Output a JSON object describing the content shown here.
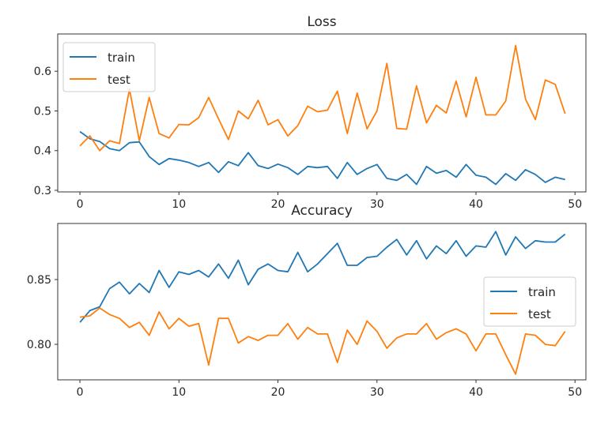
{
  "chart_data": [
    {
      "type": "line",
      "title": "Loss",
      "xlabel": "",
      "ylabel": "",
      "xlim": [
        -2.24,
        51.1
      ],
      "ylim": [
        0.296,
        0.694
      ],
      "xticks": [
        0,
        10,
        20,
        30,
        40,
        50
      ],
      "yticks": [
        0.3,
        0.4,
        0.5,
        0.6
      ],
      "ytick_labels": [
        "0.3",
        "0.4",
        "0.5",
        "0.6"
      ],
      "legend_position": "upper-left",
      "grid": false,
      "x": [
        0,
        1,
        2,
        3,
        4,
        5,
        6,
        7,
        8,
        9,
        10,
        11,
        12,
        13,
        14,
        15,
        16,
        17,
        18,
        19,
        20,
        21,
        22,
        23,
        24,
        25,
        26,
        27,
        28,
        29,
        30,
        31,
        32,
        33,
        34,
        35,
        36,
        37,
        38,
        39,
        40,
        41,
        42,
        43,
        44,
        45,
        46,
        47,
        48,
        49
      ],
      "series": [
        {
          "name": "train",
          "color": "#1f77b4",
          "values": [
            0.448,
            0.43,
            0.423,
            0.405,
            0.4,
            0.42,
            0.422,
            0.385,
            0.365,
            0.38,
            0.376,
            0.37,
            0.36,
            0.37,
            0.345,
            0.372,
            0.362,
            0.395,
            0.362,
            0.355,
            0.366,
            0.357,
            0.34,
            0.36,
            0.357,
            0.36,
            0.33,
            0.37,
            0.34,
            0.355,
            0.365,
            0.33,
            0.325,
            0.34,
            0.315,
            0.36,
            0.343,
            0.35,
            0.333,
            0.365,
            0.338,
            0.333,
            0.315,
            0.342,
            0.325,
            0.352,
            0.34,
            0.32,
            0.333,
            0.327
          ]
        },
        {
          "name": "test",
          "color": "#ff7f0e",
          "values": [
            0.412,
            0.437,
            0.4,
            0.425,
            0.418,
            0.555,
            0.425,
            0.534,
            0.443,
            0.432,
            0.466,
            0.465,
            0.483,
            0.534,
            0.48,
            0.428,
            0.5,
            0.48,
            0.527,
            0.465,
            0.478,
            0.437,
            0.463,
            0.512,
            0.498,
            0.502,
            0.55,
            0.443,
            0.545,
            0.455,
            0.5,
            0.62,
            0.456,
            0.454,
            0.563,
            0.47,
            0.514,
            0.495,
            0.575,
            0.485,
            0.585,
            0.49,
            0.49,
            0.525,
            0.665,
            0.53,
            0.478,
            0.578,
            0.567,
            0.493
          ]
        }
      ]
    },
    {
      "type": "line",
      "title": "Accuracy",
      "xlabel": "",
      "ylabel": "",
      "xlim": [
        -2.24,
        51.1
      ],
      "ylim": [
        0.7726,
        0.8933
      ],
      "xticks": [
        0,
        10,
        20,
        30,
        40,
        50
      ],
      "yticks": [
        0.8,
        0.85
      ],
      "ytick_labels": [
        "0.80",
        "0.85"
      ],
      "legend_position": "center-right",
      "grid": false,
      "x": [
        0,
        1,
        2,
        3,
        4,
        5,
        6,
        7,
        8,
        9,
        10,
        11,
        12,
        13,
        14,
        15,
        16,
        17,
        18,
        19,
        20,
        21,
        22,
        23,
        24,
        25,
        26,
        27,
        28,
        29,
        30,
        31,
        32,
        33,
        34,
        35,
        36,
        37,
        38,
        39,
        40,
        41,
        42,
        43,
        44,
        45,
        46,
        47,
        48,
        49
      ],
      "series": [
        {
          "name": "train",
          "color": "#1f77b4",
          "values": [
            0.817,
            0.826,
            0.829,
            0.843,
            0.848,
            0.839,
            0.847,
            0.84,
            0.857,
            0.844,
            0.856,
            0.854,
            0.857,
            0.852,
            0.862,
            0.851,
            0.865,
            0.846,
            0.858,
            0.862,
            0.857,
            0.856,
            0.871,
            0.856,
            0.862,
            0.87,
            0.878,
            0.861,
            0.861,
            0.867,
            0.868,
            0.875,
            0.881,
            0.869,
            0.88,
            0.866,
            0.876,
            0.87,
            0.88,
            0.868,
            0.876,
            0.875,
            0.887,
            0.869,
            0.883,
            0.874,
            0.88,
            0.879,
            0.879,
            0.885
          ]
        },
        {
          "name": "test",
          "color": "#ff7f0e",
          "values": [
            0.821,
            0.822,
            0.828,
            0.823,
            0.82,
            0.813,
            0.817,
            0.807,
            0.825,
            0.812,
            0.82,
            0.814,
            0.816,
            0.784,
            0.82,
            0.82,
            0.801,
            0.806,
            0.803,
            0.807,
            0.807,
            0.816,
            0.804,
            0.813,
            0.808,
            0.808,
            0.786,
            0.811,
            0.8,
            0.818,
            0.81,
            0.797,
            0.805,
            0.808,
            0.808,
            0.816,
            0.804,
            0.809,
            0.812,
            0.808,
            0.795,
            0.808,
            0.808,
            0.792,
            0.777,
            0.808,
            0.807,
            0.8,
            0.799,
            0.81
          ]
        }
      ]
    }
  ]
}
